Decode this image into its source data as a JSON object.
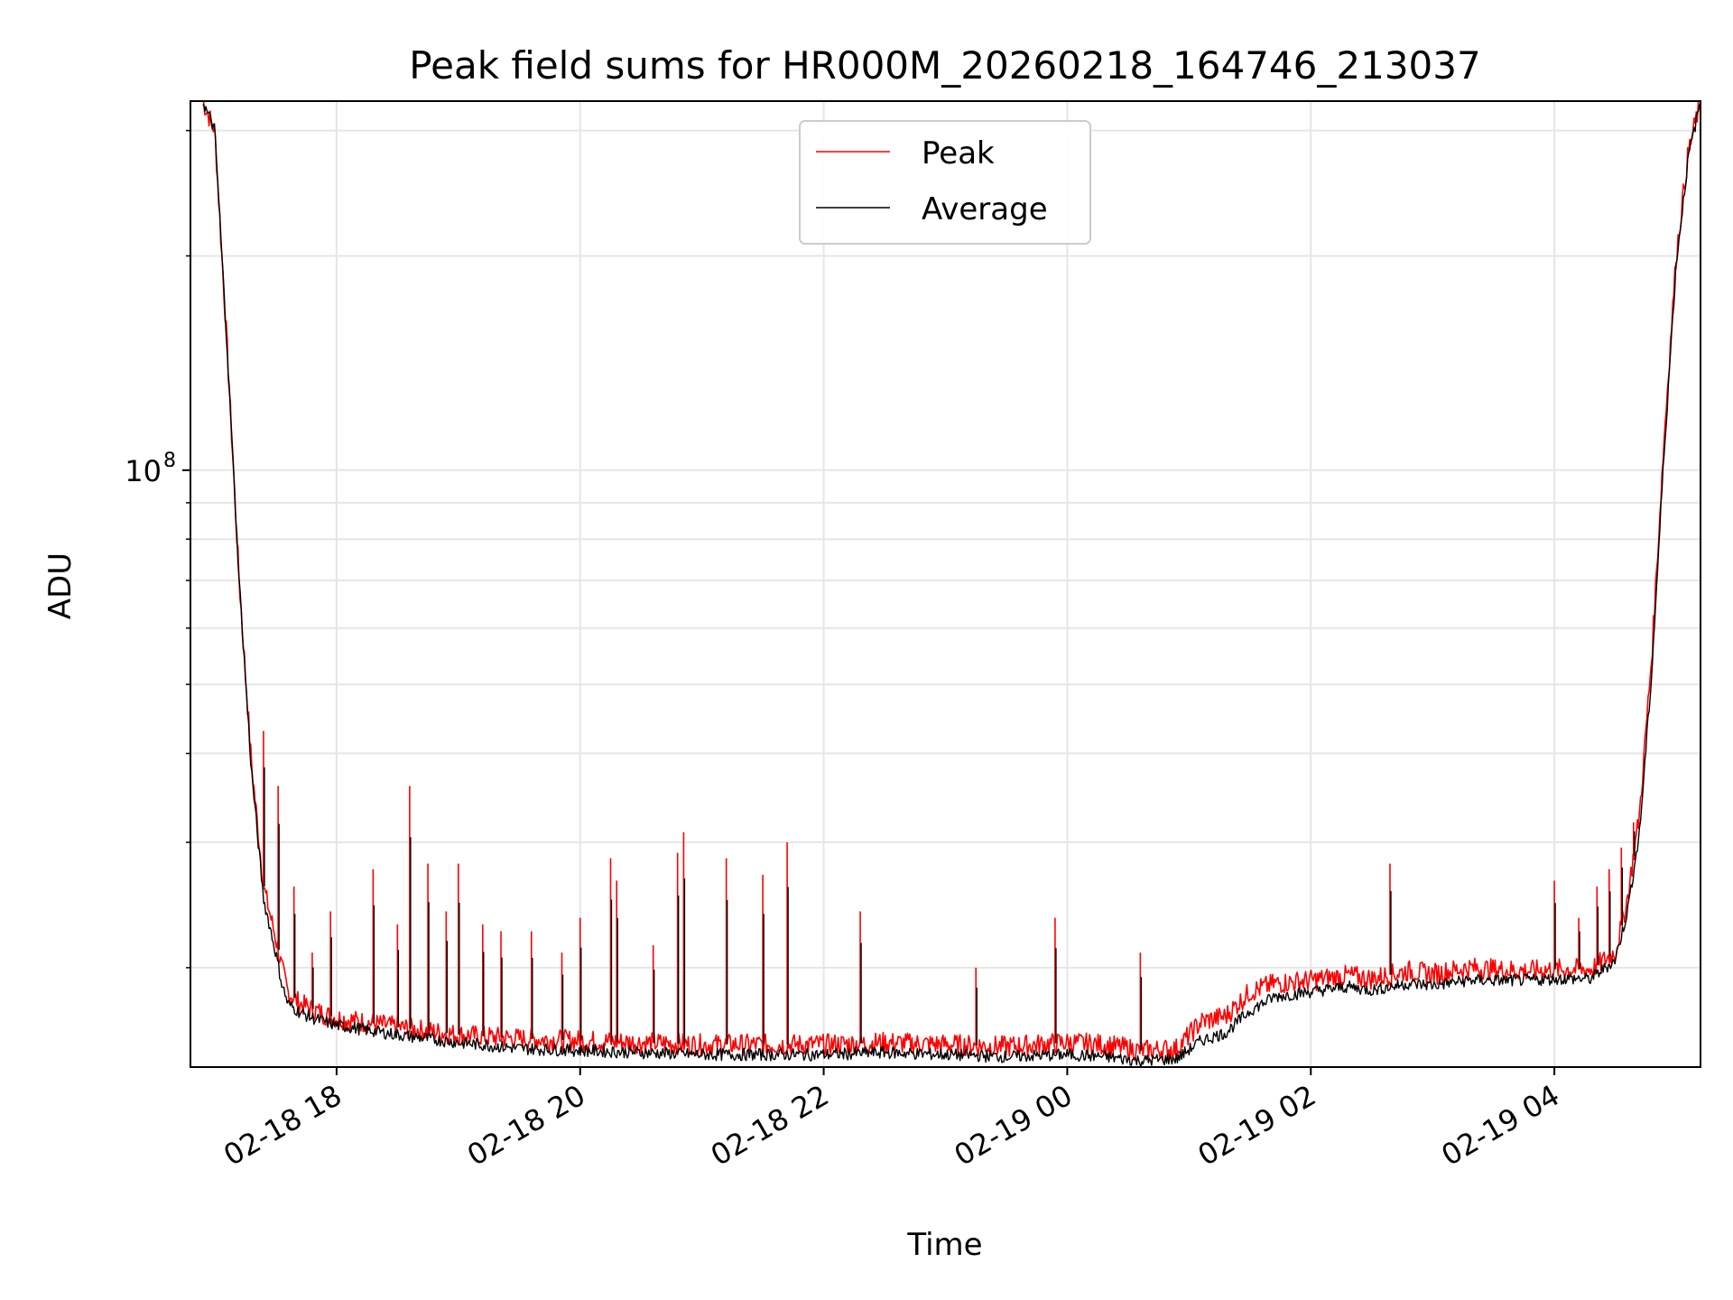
{
  "chart_data": {
    "type": "line",
    "title": "Peak field sums for HR000M_20260218_164746_213037",
    "xlabel": "Time",
    "ylabel": "ADU",
    "yscale": "log",
    "ylim": [
      14500000,
      330000000
    ],
    "xlim_hours": [
      -1.2,
      11.2
    ],
    "x_ticks": [
      {
        "hour": 0,
        "label": "02-18 18"
      },
      {
        "hour": 2,
        "label": "02-18 20"
      },
      {
        "hour": 4,
        "label": "02-18 22"
      },
      {
        "hour": 6,
        "label": "02-19 00"
      },
      {
        "hour": 8,
        "label": "02-19 02"
      },
      {
        "hour": 10,
        "label": "02-19 04"
      }
    ],
    "y_major_ticks": [
      {
        "value": 100000000,
        "label": "10",
        "exponent": "8"
      }
    ],
    "y_minor_ticks": [
      20000000,
      30000000,
      40000000,
      50000000,
      60000000,
      70000000,
      80000000,
      90000000,
      200000000,
      300000000
    ],
    "grid": true,
    "legend_position": "top-center",
    "colors": {
      "peak": "#ff0000",
      "average": "#000000",
      "grid": "#e6e6e6",
      "legend_border": "#cccccc"
    },
    "series": [
      {
        "name": "Peak",
        "color": "#ff0000",
        "x": [
          -1.1,
          -1.0,
          -0.9,
          -0.8,
          -0.7,
          -0.6,
          -0.5,
          -0.45,
          -0.4,
          -0.3,
          -0.2,
          -0.1,
          0.0,
          0.5,
          1.0,
          1.5,
          2.0,
          2.5,
          3.0,
          3.5,
          4.0,
          4.5,
          5.0,
          5.5,
          6.0,
          6.3,
          6.6,
          6.9,
          7.1,
          7.3,
          7.5,
          7.7,
          8.0,
          8.3,
          8.5,
          8.8,
          9.0,
          9.3,
          9.5,
          9.8,
          10.0,
          10.3,
          10.5,
          10.6,
          10.7,
          10.8,
          10.9,
          11.0,
          11.1,
          11.2
        ],
        "y": [
          330000000,
          300000000,
          150000000,
          70000000,
          39000000,
          26000000,
          22000000,
          20000000,
          18500000,
          17800000,
          17500000,
          17200000,
          17000000,
          16500000,
          16100000,
          15900000,
          15800000,
          15700000,
          15600000,
          15600000,
          15600000,
          15700000,
          15600000,
          15500000,
          15700000,
          15600000,
          15300000,
          15400000,
          16800000,
          17100000,
          18500000,
          19000000,
          19200000,
          19500000,
          19300000,
          19800000,
          19600000,
          20000000,
          19900000,
          19800000,
          19900000,
          19900000,
          21000000,
          25000000,
          33000000,
          55000000,
          110000000,
          200000000,
          280000000,
          330000000
        ],
        "spikes": [
          {
            "hour": -0.6,
            "value": 43000000
          },
          {
            "hour": -0.48,
            "value": 36000000
          },
          {
            "hour": -0.35,
            "value": 26000000
          },
          {
            "hour": -0.2,
            "value": 21000000
          },
          {
            "hour": -0.05,
            "value": 24000000
          },
          {
            "hour": 0.3,
            "value": 27500000
          },
          {
            "hour": 0.5,
            "value": 23000000
          },
          {
            "hour": 0.6,
            "value": 36000000
          },
          {
            "hour": 0.75,
            "value": 28000000
          },
          {
            "hour": 0.9,
            "value": 24000000
          },
          {
            "hour": 1.0,
            "value": 28000000
          },
          {
            "hour": 1.2,
            "value": 23000000
          },
          {
            "hour": 1.35,
            "value": 22500000
          },
          {
            "hour": 1.6,
            "value": 22500000
          },
          {
            "hour": 1.85,
            "value": 21000000
          },
          {
            "hour": 2.0,
            "value": 23500000
          },
          {
            "hour": 2.25,
            "value": 28500000
          },
          {
            "hour": 2.3,
            "value": 26500000
          },
          {
            "hour": 2.6,
            "value": 21500000
          },
          {
            "hour": 2.8,
            "value": 29000000
          },
          {
            "hour": 2.85,
            "value": 31000000
          },
          {
            "hour": 3.2,
            "value": 28500000
          },
          {
            "hour": 3.5,
            "value": 27000000
          },
          {
            "hour": 3.7,
            "value": 30000000
          },
          {
            "hour": 4.3,
            "value": 24000000
          },
          {
            "hour": 5.25,
            "value": 20000000
          },
          {
            "hour": 5.9,
            "value": 23500000
          },
          {
            "hour": 6.6,
            "value": 21000000
          },
          {
            "hour": 8.65,
            "value": 28000000
          },
          {
            "hour": 10.0,
            "value": 26500000
          },
          {
            "hour": 10.2,
            "value": 23500000
          },
          {
            "hour": 10.35,
            "value": 26000000
          },
          {
            "hour": 10.45,
            "value": 27500000
          },
          {
            "hour": 10.55,
            "value": 29500000
          },
          {
            "hour": 10.65,
            "value": 32000000
          }
        ]
      },
      {
        "name": "Average",
        "color": "#000000",
        "x": [
          -1.1,
          -1.0,
          -0.9,
          -0.8,
          -0.7,
          -0.6,
          -0.5,
          -0.45,
          -0.4,
          -0.3,
          -0.2,
          -0.1,
          0.0,
          0.5,
          1.0,
          1.5,
          2.0,
          2.5,
          3.0,
          3.5,
          4.0,
          4.5,
          5.0,
          5.5,
          6.0,
          6.3,
          6.6,
          6.9,
          7.1,
          7.3,
          7.5,
          7.7,
          8.0,
          8.3,
          8.5,
          8.8,
          9.0,
          9.3,
          9.5,
          9.8,
          10.0,
          10.3,
          10.5,
          10.6,
          10.7,
          10.8,
          10.9,
          11.0,
          11.1,
          11.2
        ],
        "y": [
          330000000,
          300000000,
          150000000,
          70000000,
          38000000,
          25000000,
          21000000,
          19000000,
          17800000,
          17300000,
          17000000,
          16800000,
          16600000,
          16100000,
          15700000,
          15400000,
          15300000,
          15200000,
          15100000,
          15100000,
          15100000,
          15200000,
          15100000,
          15000000,
          15100000,
          15000000,
          14800000,
          14900000,
          15800000,
          16200000,
          17400000,
          18200000,
          18500000,
          18800000,
          18600000,
          19000000,
          18900000,
          19200000,
          19200000,
          19200000,
          19300000,
          19300000,
          20500000,
          24000000,
          31000000,
          52000000,
          105000000,
          195000000,
          275000000,
          330000000
        ]
      }
    ]
  }
}
